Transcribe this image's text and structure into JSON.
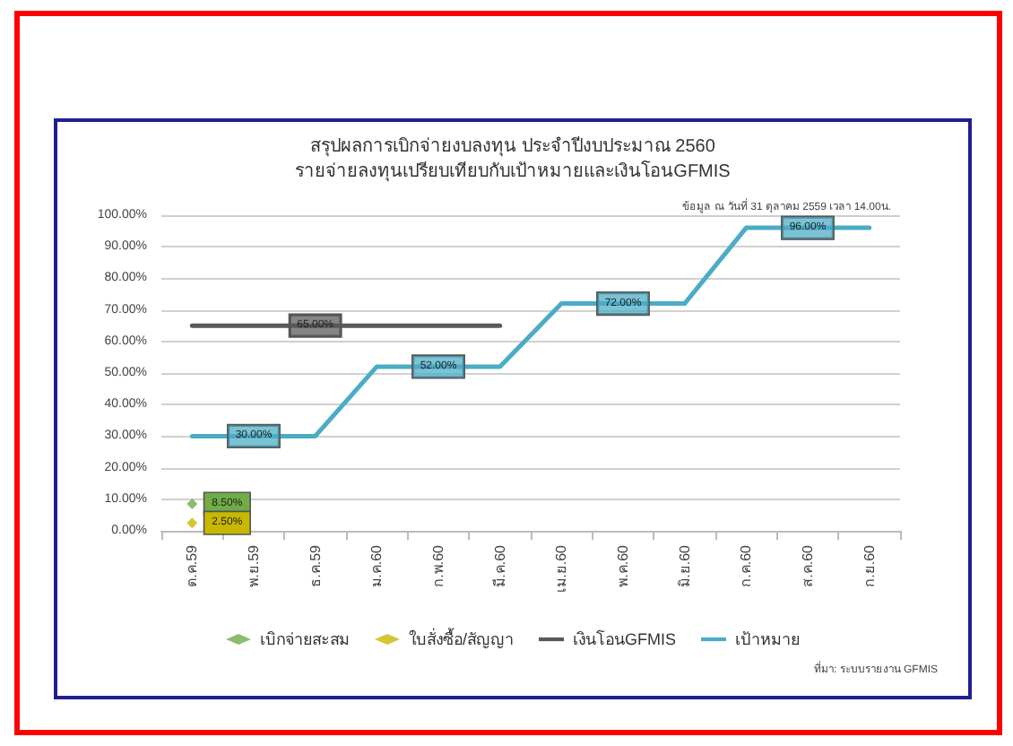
{
  "chart_data": {
    "type": "line",
    "title": "สรุปผลการเบิกจ่ายงบลงทุน ประจำปีงบประมาณ 2560",
    "subtitle": "รายจ่ายลงทุนเปรียบเทียบกับเป้าหมายและเงินโอนGFMIS",
    "annotations": [
      "ข้อมูล ณ วันที่ 31 ตุลาคม 2559 เวลา 14.00น.",
      "ที่มา: ระบบรายงาน GFMIS"
    ],
    "categories": [
      "ต.ค.59",
      "พ.ย.59",
      "ธ.ค.59",
      "ม.ค.60",
      "ก.พ.60",
      "มี.ค.60",
      "เม.ย.60",
      "พ.ค.60",
      "มิ.ย.60",
      "ก.ค.60",
      "ส.ค.60",
      "ก.ย.60"
    ],
    "series": [
      {
        "name": "เบิกจ่ายสะสม",
        "type": "scatter",
        "marker": "diamond",
        "color": "#70ad47",
        "x": [
          "ต.ค.59"
        ],
        "values": [
          8.5
        ],
        "value_labels": [
          "8.50%"
        ]
      },
      {
        "name": "ใบสั่งซื้อ/สัญญา",
        "type": "scatter",
        "marker": "diamond",
        "color": "#c9b800",
        "x": [
          "ต.ค.59"
        ],
        "values": [
          2.5
        ],
        "value_labels": [
          "2.50%"
        ]
      },
      {
        "name": "เงินโอนGFMIS",
        "color": "#595959",
        "values": [
          65,
          65,
          65,
          65,
          65,
          65,
          null,
          null,
          null,
          null,
          null,
          null
        ],
        "value_labels": [
          null,
          null,
          "65.00%",
          null,
          null,
          null,
          null,
          null,
          null,
          null,
          null,
          null
        ]
      },
      {
        "name": "เป้าหมาย",
        "color": "#4bacc6",
        "values": [
          30,
          30,
          30,
          52,
          52,
          52,
          72,
          72,
          72,
          96,
          96,
          96
        ],
        "value_labels": [
          null,
          "30.00%",
          null,
          null,
          "52.00%",
          null,
          null,
          "72.00%",
          null,
          null,
          "96.00%",
          null
        ]
      }
    ],
    "ylim": [
      0,
      100
    ],
    "yticks": [
      {
        "value": 0,
        "label": "0.00%"
      },
      {
        "value": 10,
        "label": "10.00%"
      },
      {
        "value": 20,
        "label": "20.00%"
      },
      {
        "value": 30,
        "label": "30.00%"
      },
      {
        "value": 40,
        "label": "40.00%"
      },
      {
        "value": 50,
        "label": "50.00%"
      },
      {
        "value": 60,
        "label": "60.00%"
      },
      {
        "value": 70,
        "label": "70.00%"
      },
      {
        "value": 80,
        "label": "80.00%"
      },
      {
        "value": 90,
        "label": "90.00%"
      },
      {
        "value": 100,
        "label": "100.00%"
      }
    ],
    "grid": "y",
    "legend": "bottom",
    "marker": "none"
  }
}
